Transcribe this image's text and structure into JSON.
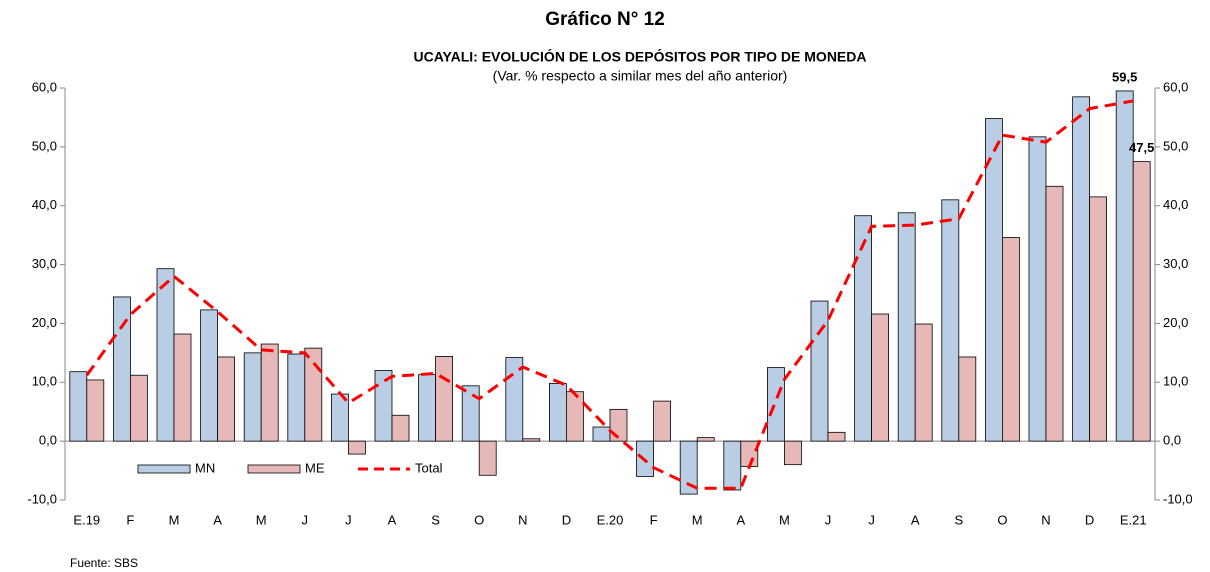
{
  "chart_data": {
    "type": "bar",
    "title": "Gráfico N° 12",
    "subtitle": "UCAYALI: EVOLUCIÓN DE LOS DEPÓSITOS POR TIPO DE MONEDA",
    "note": "(Var. % respecto a similar mes del año anterior)",
    "source": "Fuente: SBS",
    "categories": [
      "E.19",
      "F",
      "M",
      "A",
      "M",
      "J",
      "J",
      "A",
      "S",
      "O",
      "N",
      "D",
      "E.20",
      "F",
      "M",
      "A",
      "M",
      "J",
      "J",
      "A",
      "S",
      "O",
      "N",
      "D",
      "E.21"
    ],
    "series": [
      {
        "name": "MN",
        "type": "bar",
        "color": "#b9cde5",
        "values": [
          11.8,
          24.5,
          29.3,
          22.3,
          15.0,
          14.8,
          8.0,
          12.0,
          11.3,
          9.4,
          14.2,
          9.8,
          2.4,
          -6.0,
          -9.0,
          -8.3,
          12.5,
          23.8,
          38.3,
          38.8,
          41.0,
          54.8,
          51.7,
          58.5,
          59.5
        ],
        "value_labels": [
          null,
          null,
          null,
          null,
          null,
          null,
          null,
          null,
          null,
          null,
          null,
          null,
          null,
          null,
          null,
          null,
          null,
          null,
          null,
          null,
          null,
          null,
          null,
          null,
          "59,5"
        ]
      },
      {
        "name": "ME",
        "type": "bar",
        "color": "#e6b9b8",
        "values": [
          10.4,
          11.2,
          18.2,
          14.3,
          16.5,
          15.8,
          -2.2,
          4.4,
          14.4,
          -5.8,
          0.4,
          8.4,
          5.4,
          6.8,
          0.6,
          -4.3,
          -4.0,
          1.5,
          21.6,
          19.9,
          14.3,
          34.6,
          43.3,
          41.5,
          47.5
        ],
        "value_labels": [
          null,
          null,
          null,
          null,
          null,
          null,
          null,
          null,
          null,
          null,
          null,
          null,
          null,
          null,
          null,
          null,
          null,
          null,
          null,
          null,
          null,
          null,
          null,
          null,
          "47,5"
        ]
      },
      {
        "name": "Total",
        "type": "line",
        "color": "#ff0000",
        "values": [
          11.2,
          21.5,
          28.0,
          22.0,
          15.5,
          15.0,
          6.5,
          11.0,
          11.5,
          7.2,
          12.6,
          9.5,
          1.8,
          -4.5,
          -8.0,
          -8.0,
          10.5,
          20.5,
          36.5,
          36.7,
          37.8,
          52.0,
          50.8,
          56.5,
          57.8
        ]
      }
    ],
    "ylim": [
      -10,
      60
    ],
    "yticks": [
      {
        "value": -10,
        "label": "-10,0"
      },
      {
        "value": 0,
        "label": "0,0"
      },
      {
        "value": 10,
        "label": "10,0"
      },
      {
        "value": 20,
        "label": "20,0"
      },
      {
        "value": 30,
        "label": "30,0"
      },
      {
        "value": 40,
        "label": "40,0"
      },
      {
        "value": 50,
        "label": "50,0"
      },
      {
        "value": 60,
        "label": "60,0"
      }
    ],
    "y2lim": [
      -10,
      60
    ],
    "y2ticks": [
      {
        "value": -10,
        "label": "-10,0"
      },
      {
        "value": 0,
        "label": "0,0"
      },
      {
        "value": 10,
        "label": "10,0"
      },
      {
        "value": 20,
        "label": "20,0"
      },
      {
        "value": 30,
        "label": "30,0"
      },
      {
        "value": 40,
        "label": "40,0"
      },
      {
        "value": 50,
        "label": "50,0"
      },
      {
        "value": 60,
        "label": "60,0"
      }
    ],
    "legend": "lower left"
  }
}
